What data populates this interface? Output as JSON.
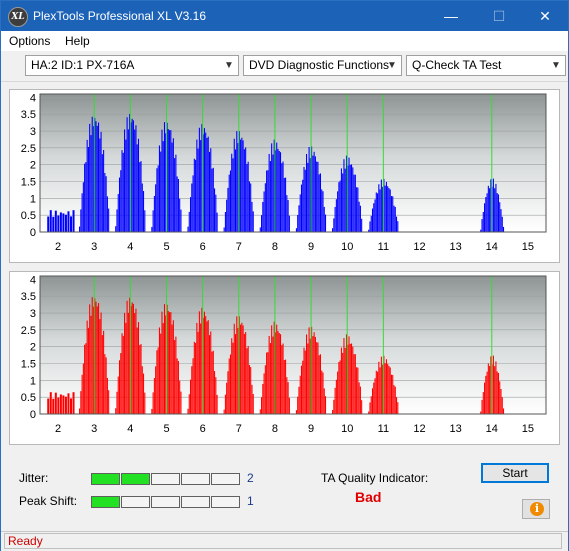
{
  "window": {
    "title": "PlexTools Professional XL V3.16",
    "icon_text": "XL",
    "minimize_glyph": "—",
    "maximize_glyph": "☐",
    "close_glyph": "✕"
  },
  "menu": {
    "items": [
      {
        "label": "Options"
      },
      {
        "label": "Help"
      }
    ]
  },
  "toolbar": {
    "drive_select": "HA:2 ID:1  PX-716A",
    "function_select": "DVD Diagnostic Functions",
    "test_select": "Q-Check TA Test"
  },
  "colors": {
    "top_series": "#0000ff",
    "bottom_series": "#ff0000",
    "marker_lines": "#33dd33"
  },
  "chart_data": [
    {
      "type": "histogram",
      "series_color": "#0000ff",
      "xlim": [
        1.5,
        15.5
      ],
      "ylim": [
        0,
        4.1
      ],
      "x_ticks": [
        "2",
        "3",
        "4",
        "5",
        "6",
        "7",
        "8",
        "9",
        "10",
        "11",
        "12",
        "13",
        "14",
        "15"
      ],
      "y_ticks": [
        "0",
        "0.5",
        "1",
        "1.5",
        "2",
        "2.5",
        "3",
        "3.5",
        "4"
      ],
      "marker_lines_x": [
        3,
        4,
        5,
        6,
        7,
        8,
        9,
        10,
        11,
        14
      ],
      "peaks": [
        {
          "x": 3,
          "y": 3.6
        },
        {
          "x": 4,
          "y": 3.65
        },
        {
          "x": 5,
          "y": 3.4
        },
        {
          "x": 6,
          "y": 3.3
        },
        {
          "x": 7,
          "y": 3.1
        },
        {
          "x": 8,
          "y": 2.8
        },
        {
          "x": 9,
          "y": 2.6
        },
        {
          "x": 10,
          "y": 2.3
        },
        {
          "x": 11,
          "y": 1.6
        },
        {
          "x": 14,
          "y": 1.6
        }
      ]
    },
    {
      "type": "histogram",
      "series_color": "#ff0000",
      "xlim": [
        1.5,
        15.5
      ],
      "ylim": [
        0,
        4.1
      ],
      "x_ticks": [
        "2",
        "3",
        "4",
        "5",
        "6",
        "7",
        "8",
        "9",
        "10",
        "11",
        "12",
        "13",
        "14",
        "15"
      ],
      "y_ticks": [
        "0",
        "0.5",
        "1",
        "1.5",
        "2",
        "2.5",
        "3",
        "3.5",
        "4"
      ],
      "marker_lines_x": [
        3,
        4,
        5,
        6,
        7,
        8,
        9,
        10,
        11,
        14
      ],
      "peaks": [
        {
          "x": 3,
          "y": 3.65
        },
        {
          "x": 4,
          "y": 3.6
        },
        {
          "x": 5,
          "y": 3.4
        },
        {
          "x": 6,
          "y": 3.25
        },
        {
          "x": 7,
          "y": 3.0
        },
        {
          "x": 8,
          "y": 2.8
        },
        {
          "x": 9,
          "y": 2.65
        },
        {
          "x": 10,
          "y": 2.4
        },
        {
          "x": 11,
          "y": 1.75
        },
        {
          "x": 14,
          "y": 1.75
        }
      ]
    }
  ],
  "metrics": {
    "jitter_label": "Jitter:",
    "jitter_value": "2",
    "jitter_level": 2,
    "peak_shift_label": "Peak Shift:",
    "peak_shift_value": "1",
    "peak_shift_level": 1,
    "scale_max": 5
  },
  "ta_quality": {
    "label": "TA Quality Indicator:",
    "value": "Bad"
  },
  "buttons": {
    "start_label": "Start",
    "info_glyph": "i"
  },
  "status": {
    "text": "Ready"
  }
}
